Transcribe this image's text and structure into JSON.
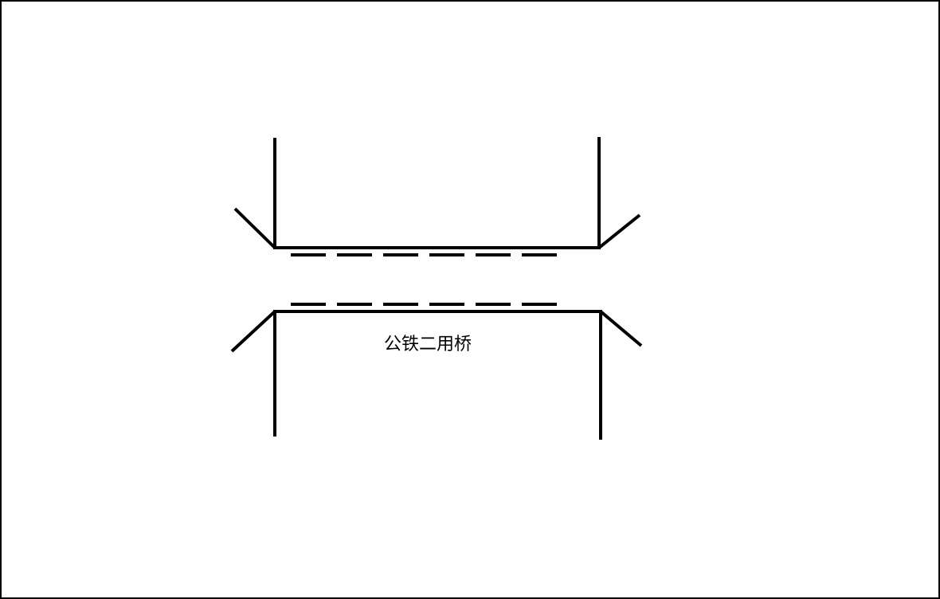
{
  "diagram": {
    "label": "公铁二用桥",
    "colors": {
      "background": "#ffffff",
      "stroke": "#000000"
    }
  }
}
